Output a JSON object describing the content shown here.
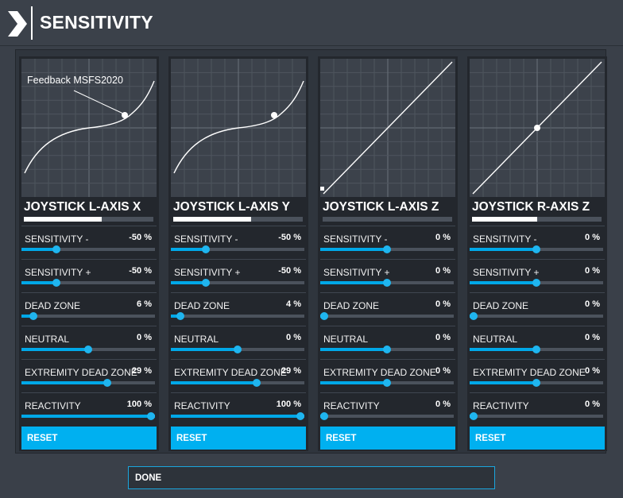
{
  "header": {
    "title": "SENSITIVITY",
    "icon": "chevron-right-icon"
  },
  "accent_color": "#00b0f0",
  "annotation": "Feedback MSFS2020",
  "cards": [
    {
      "name": "JOYSTICK L-AXIS X",
      "axis_fill": 0.6,
      "curve": "s",
      "settings": [
        {
          "label": "SENSITIVITY -",
          "value": "-50 %",
          "level": 0.26
        },
        {
          "label": "SENSITIVITY +",
          "value": "-50 %",
          "level": 0.26
        },
        {
          "label": "DEAD ZONE",
          "value": "6 %",
          "level": 0.09
        },
        {
          "label": "NEUTRAL",
          "value": "0 %",
          "level": 0.5
        },
        {
          "label": "EXTREMITY DEAD ZONE",
          "value": "29 %",
          "level": 0.64
        },
        {
          "label": "REACTIVITY",
          "value": "100 %",
          "level": 1.0
        }
      ],
      "reset_label": "RESET"
    },
    {
      "name": "JOYSTICK L-AXIS Y",
      "axis_fill": 0.6,
      "curve": "s",
      "settings": [
        {
          "label": "SENSITIVITY -",
          "value": "-50 %",
          "level": 0.26
        },
        {
          "label": "SENSITIVITY +",
          "value": "-50 %",
          "level": 0.26
        },
        {
          "label": "DEAD ZONE",
          "value": "4 %",
          "level": 0.07
        },
        {
          "label": "NEUTRAL",
          "value": "0 %",
          "level": 0.5
        },
        {
          "label": "EXTREMITY DEAD ZONE",
          "value": "29 %",
          "level": 0.64
        },
        {
          "label": "REACTIVITY",
          "value": "100 %",
          "level": 1.0
        }
      ],
      "reset_label": "RESET"
    },
    {
      "name": "JOYSTICK L-AXIS Z",
      "axis_fill": 0.0,
      "curve": "linear",
      "settings": [
        {
          "label": "SENSITIVITY -",
          "value": "0 %",
          "level": 0.5
        },
        {
          "label": "SENSITIVITY +",
          "value": "0 %",
          "level": 0.5
        },
        {
          "label": "DEAD ZONE",
          "value": "0 %",
          "level": 0.03
        },
        {
          "label": "NEUTRAL",
          "value": "0 %",
          "level": 0.5
        },
        {
          "label": "EXTREMITY DEAD ZONE",
          "value": "0 %",
          "level": 0.5
        },
        {
          "label": "REACTIVITY",
          "value": "0 %",
          "level": 0.03
        }
      ],
      "reset_label": "RESET"
    },
    {
      "name": "JOYSTICK R-AXIS Z",
      "axis_fill": 0.5,
      "curve": "linear",
      "settings": [
        {
          "label": "SENSITIVITY -",
          "value": "0 %",
          "level": 0.5
        },
        {
          "label": "SENSITIVITY +",
          "value": "0 %",
          "level": 0.5
        },
        {
          "label": "DEAD ZONE",
          "value": "0 %",
          "level": 0.03
        },
        {
          "label": "NEUTRAL",
          "value": "0 %",
          "level": 0.5
        },
        {
          "label": "EXTREMITY DEAD ZONE",
          "value": "0 %",
          "level": 0.5
        },
        {
          "label": "REACTIVITY",
          "value": "0 %",
          "level": 0.03
        }
      ],
      "reset_label": "RESET"
    }
  ],
  "done_label": "DONE"
}
